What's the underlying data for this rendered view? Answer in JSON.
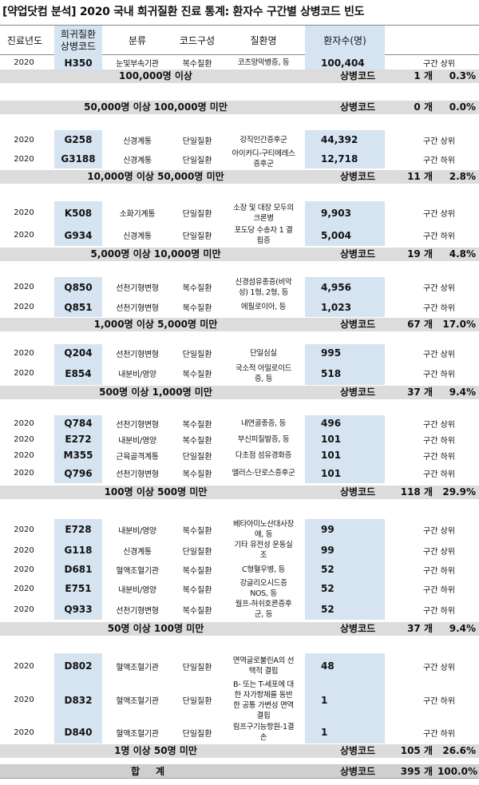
{
  "title": "[약업닷컴 분석] 2020 국내 희귀질환 진료 통계: 환자수 구간별 상병코드 빈도",
  "headers": {
    "year": "진료년도",
    "code": "희귀질환\n상병코드",
    "category": "분류",
    "composition": "코드구성",
    "disease": "질환명",
    "patients": "환자수(명)"
  },
  "groups": [
    {
      "rows": [
        {
          "year": "2020",
          "code": "H350",
          "category": "눈및부속기관",
          "composition": "복수질환",
          "disease": "코츠망막병증, 등",
          "patients": "100,404",
          "rank": "구간 상위"
        }
      ],
      "label": "100,000명 이상",
      "code_label": "상병코드",
      "count": "1 개",
      "pct": "0.3%"
    },
    {
      "rows": [],
      "label": "50,000명 이상 100,000명 미만",
      "code_label": "상병코드",
      "count": "0 개",
      "pct": "0.0%"
    },
    {
      "rows": [
        {
          "year": "2020",
          "code": "G258",
          "category": "신경계통",
          "composition": "단일질환",
          "disease": "강직인간증후군",
          "patients": "44,392",
          "rank": "구간 상위"
        },
        {
          "year": "2020",
          "code": "G3188",
          "category": "신경계통",
          "composition": "단일질환",
          "disease": "아이카디-구티에레스\n증후군",
          "patients": "12,718",
          "rank": "구간 하위"
        }
      ],
      "label": "10,000명 이상 50,000명 미만",
      "code_label": "상병코드",
      "count": "11 개",
      "pct": "2.8%"
    },
    {
      "rows": [
        {
          "year": "2020",
          "code": "K508",
          "category": "소화기계통",
          "composition": "단일질환",
          "disease": "소장 및 대장 모두의\n크론병",
          "patients": "9,903",
          "rank": "구간 상위"
        },
        {
          "year": "2020",
          "code": "G934",
          "category": "신경계통",
          "composition": "단일질환",
          "disease": "포도당 수송자 1 결\n핍증",
          "patients": "5,004",
          "rank": "구간 하위"
        }
      ],
      "label": "5,000명 이상 10,000명 미만",
      "code_label": "상병코드",
      "count": "19 개",
      "pct": "4.8%"
    },
    {
      "rows": [
        {
          "year": "2020",
          "code": "Q850",
          "category": "선천기형변형",
          "composition": "복수질환",
          "disease": "신경섬유종증(비악\n성) 1형, 2형, 등",
          "patients": "4,956",
          "rank": "구간 상위"
        },
        {
          "year": "2020",
          "code": "Q851",
          "category": "선천기형변형",
          "composition": "복수질환",
          "disease": "에필로이아, 등",
          "patients": "1,023",
          "rank": "구간 하위"
        }
      ],
      "label": "1,000명 이상 5,000명 미만",
      "code_label": "상병코드",
      "count": "67 개",
      "pct": "17.0%"
    },
    {
      "rows": [
        {
          "year": "2020",
          "code": "Q204",
          "category": "선천기형변형",
          "composition": "단일질환",
          "disease": "단일심실",
          "patients": "995",
          "rank": "구간 상위"
        },
        {
          "year": "2020",
          "code": "E854",
          "category": "내분비/영양",
          "composition": "복수질환",
          "disease": "국소적 아밀로이드\n증, 등",
          "patients": "518",
          "rank": "구간 하위"
        }
      ],
      "label": "500명 이상 1,000명 미만",
      "code_label": "상병코드",
      "count": "37 개",
      "pct": "9.4%"
    },
    {
      "rows": [
        {
          "year": "2020",
          "code": "Q784",
          "category": "선천기형변형",
          "composition": "복수질환",
          "disease": "내연골종증, 등",
          "patients": "496",
          "rank": "구간 상위"
        },
        {
          "year": "2020",
          "code": "E272",
          "category": "내분비/영양",
          "composition": "복수질환",
          "disease": "부신피질발증, 등",
          "patients": "101",
          "rank": "구간 하위"
        },
        {
          "year": "2020",
          "code": "M355",
          "category": "근육골격계통",
          "composition": "단일질환",
          "disease": "다초점 섬유경화증",
          "patients": "101",
          "rank": "구간 하위"
        },
        {
          "year": "2020",
          "code": "Q796",
          "category": "선천기형변형",
          "composition": "복수질환",
          "disease": "엘러스-단로스증후군",
          "patients": "101",
          "rank": "구간 하위"
        }
      ],
      "label": "100명 이상 500명 미만",
      "code_label": "상병코드",
      "count": "118 개",
      "pct": "29.9%"
    },
    {
      "rows": [
        {
          "year": "2020",
          "code": "E728",
          "category": "내분비/영양",
          "composition": "복수질환",
          "disease": "베타아미노산대사장\n애, 등",
          "patients": "99",
          "rank": "구간 상위"
        },
        {
          "year": "2020",
          "code": "G118",
          "category": "신경계통",
          "composition": "단일질환",
          "disease": "기타 유전성 운동실\n조",
          "patients": "99",
          "rank": "구간 상위"
        },
        {
          "year": "2020",
          "code": "D681",
          "category": "혈액조혈기관",
          "composition": "복수질환",
          "disease": "C형혈우병, 등",
          "patients": "52",
          "rank": "구간 하위"
        },
        {
          "year": "2020",
          "code": "E751",
          "category": "내분비/영양",
          "composition": "복수질환",
          "disease": "강글리오시드증\nNOS, 등",
          "patients": "52",
          "rank": "구간 하위"
        },
        {
          "year": "2020",
          "code": "Q933",
          "category": "선천기형변형",
          "composition": "복수질환",
          "disease": "월프-허쉬호른증후\n군, 등",
          "patients": "52",
          "rank": "구간 하위"
        }
      ],
      "label": "50명 이상 100명 미만",
      "code_label": "상병코드",
      "count": "37 개",
      "pct": "9.4%"
    },
    {
      "rows": [
        {
          "year": "2020",
          "code": "D802",
          "category": "혈액조혈기관",
          "composition": "단일질환",
          "disease": "면역글로불린A의 선\n택적 결핍",
          "patients": "48",
          "rank": "구간 상위"
        },
        {
          "year": "2020",
          "code": "D832",
          "category": "혈액조혈기관",
          "composition": "단일질환",
          "disease": "B- 또는 T-세포에 대\n한 자가항체를 동반\n한 공통 가변성 면역\n결핍",
          "patients": "1",
          "rank": "구간 하위"
        },
        {
          "year": "2020",
          "code": "D840",
          "category": "혈액조혈기관",
          "composition": "단일질환",
          "disease": "림프구기능항원-1결\n손",
          "patients": "1",
          "rank": "구간 하위"
        }
      ],
      "label": "1명 이상 50명 미만",
      "code_label": "상병코드",
      "count": "105 개",
      "pct": "26.6%"
    }
  ],
  "total": {
    "label": "합계",
    "code_label": "상병코드",
    "count": "395 개",
    "pct": "100.0%"
  }
}
